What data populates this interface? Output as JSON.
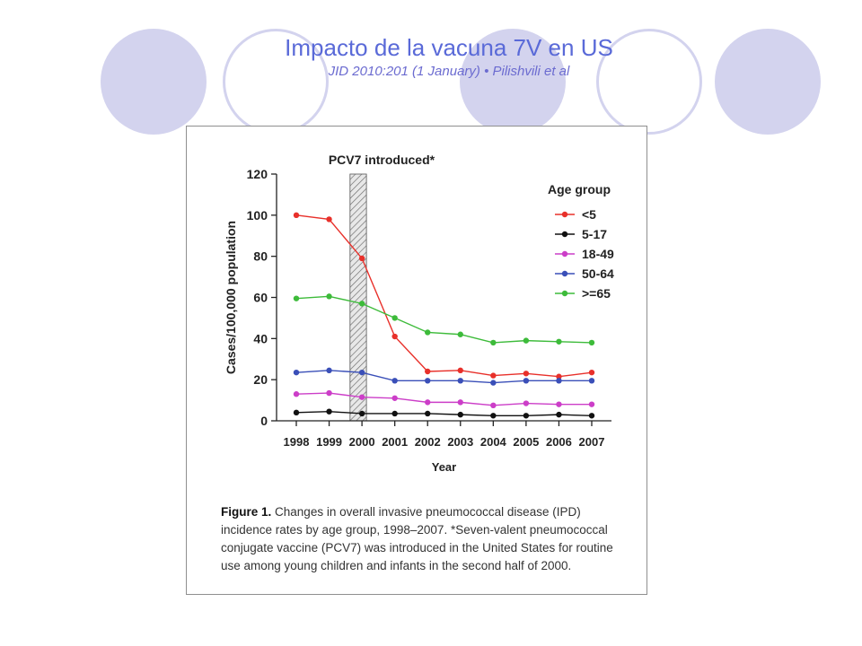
{
  "slide": {
    "title": "Impacto de la vacuna 7V en US",
    "subtitle": "JID 2010:201 (1 January) • Pilishvili et al"
  },
  "figure": {
    "label": "Figure 1.",
    "caption_text": "Changes in overall invasive pneumococcal disease (IPD) incidence rates by age group, 1998–2007. *Seven-valent pneumococcal conjugate vaccine (PCV7) was introduced in the United States for routine use among young children and infants in the second half of 2000."
  },
  "chart_data": {
    "type": "line",
    "title": "",
    "xlabel": "Year",
    "ylabel": "Cases/100,000 population",
    "ylim": [
      0,
      120
    ],
    "yticks": [
      0,
      20,
      40,
      60,
      80,
      100,
      120
    ],
    "x": [
      "1998",
      "1999",
      "2000",
      "2001",
      "2002",
      "2003",
      "2004",
      "2005",
      "2006",
      "2007"
    ],
    "legend_title": "Age group",
    "legend_position": "top-right",
    "grid": false,
    "annotation": {
      "text": "PCV7 introduced*",
      "x_from": "1999.5",
      "x_to": "2000"
    },
    "series": [
      {
        "name": "<5",
        "color": "#e8302a",
        "values": [
          100,
          98,
          79,
          41,
          24,
          24.5,
          22,
          23,
          21.5,
          23.5
        ]
      },
      {
        "name": "5-17",
        "color": "#111111",
        "values": [
          4,
          4.5,
          3.5,
          3.5,
          3.5,
          3,
          2.5,
          2.5,
          3,
          2.5
        ]
      },
      {
        "name": "18-49",
        "color": "#cc3ec8",
        "values": [
          13,
          13.5,
          11.5,
          11,
          9,
          9,
          7.5,
          8.5,
          8,
          8
        ]
      },
      {
        "name": "50-64",
        "color": "#3a4fb8",
        "values": [
          23.5,
          24.5,
          23.5,
          19.5,
          19.5,
          19.5,
          18.5,
          19.5,
          19.5,
          19.5
        ]
      },
      {
        "name": ">=65",
        "color": "#3dbb3a",
        "values": [
          59.5,
          60.5,
          57,
          50,
          43,
          42,
          38,
          39,
          38.5,
          38
        ]
      }
    ]
  }
}
